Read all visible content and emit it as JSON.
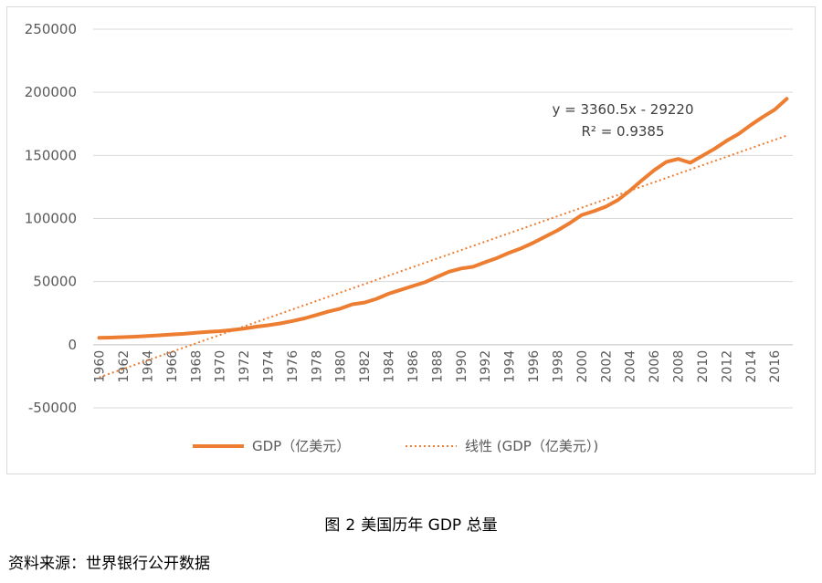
{
  "chart_data": {
    "type": "line",
    "ylim": [
      -50000,
      250000
    ],
    "y_ticks": [
      "250000",
      "200000",
      "150000",
      "100000",
      "50000",
      "0",
      "-50000"
    ],
    "y_tick_values": [
      250000,
      200000,
      150000,
      100000,
      50000,
      0,
      -50000
    ],
    "x_tick_labels": [
      "1960",
      "1962",
      "1964",
      "1966",
      "1968",
      "1970",
      "1972",
      "1974",
      "1976",
      "1978",
      "1980",
      "1982",
      "1984",
      "1986",
      "1988",
      "1990",
      "1992",
      "1994",
      "1996",
      "1998",
      "2000",
      "2002",
      "2004",
      "2006",
      "2008",
      "2010",
      "2012",
      "2014",
      "2016"
    ],
    "x": [
      1960,
      1961,
      1962,
      1963,
      1964,
      1965,
      1966,
      1967,
      1968,
      1969,
      1970,
      1971,
      1972,
      1973,
      1974,
      1975,
      1976,
      1977,
      1978,
      1979,
      1980,
      1981,
      1982,
      1983,
      1984,
      1985,
      1986,
      1987,
      1988,
      1989,
      1990,
      1991,
      1992,
      1993,
      1994,
      1995,
      1996,
      1997,
      1998,
      1999,
      2000,
      2001,
      2002,
      2003,
      2004,
      2005,
      2006,
      2007,
      2008,
      2009,
      2010,
      2011,
      2012,
      2013,
      2014,
      2015,
      2016,
      2017
    ],
    "series": [
      {
        "name": "GDP（亿美元）",
        "style": "solid",
        "color": "#ED7D31",
        "values": [
          5433,
          5633,
          6051,
          6386,
          6858,
          7437,
          8150,
          8616,
          9401,
          10198,
          10736,
          11676,
          12735,
          14258,
          15454,
          16849,
          18733,
          20818,
          23517,
          26329,
          28573,
          32076,
          33450,
          36386,
          40411,
          43469,
          46528,
          49453,
          53710,
          57832,
          60396,
          61742,
          65395,
          68785,
          72870,
          76398,
          80815,
          85777,
          90630,
          96316,
          102848,
          105818,
          109366,
          114579,
          122134,
          130371,
          138148,
          144778,
          147186,
          144187,
          149644,
          155179,
          161553,
          166915,
          173938,
          180366,
          186245,
          194854
        ]
      },
      {
        "name": "线性 (GDP（亿美元）)",
        "style": "dotted",
        "color": "#ED7D31",
        "trendline": {
          "slope": 3360.5,
          "intercept": -29220
        }
      }
    ],
    "annotation": {
      "line1": "y = 3360.5x - 29220",
      "line2": "R² = 0.9385"
    },
    "legend": [
      {
        "label": "GDP（亿美元）"
      },
      {
        "label": "线性 (GDP（亿美元）)"
      }
    ],
    "legend_position": "bottom",
    "grid": "horizontal"
  },
  "caption": {
    "prefix": "图",
    "number": "2",
    "title": "美国历年 GDP 总量"
  },
  "source": "资料来源：世界银行公开数据"
}
